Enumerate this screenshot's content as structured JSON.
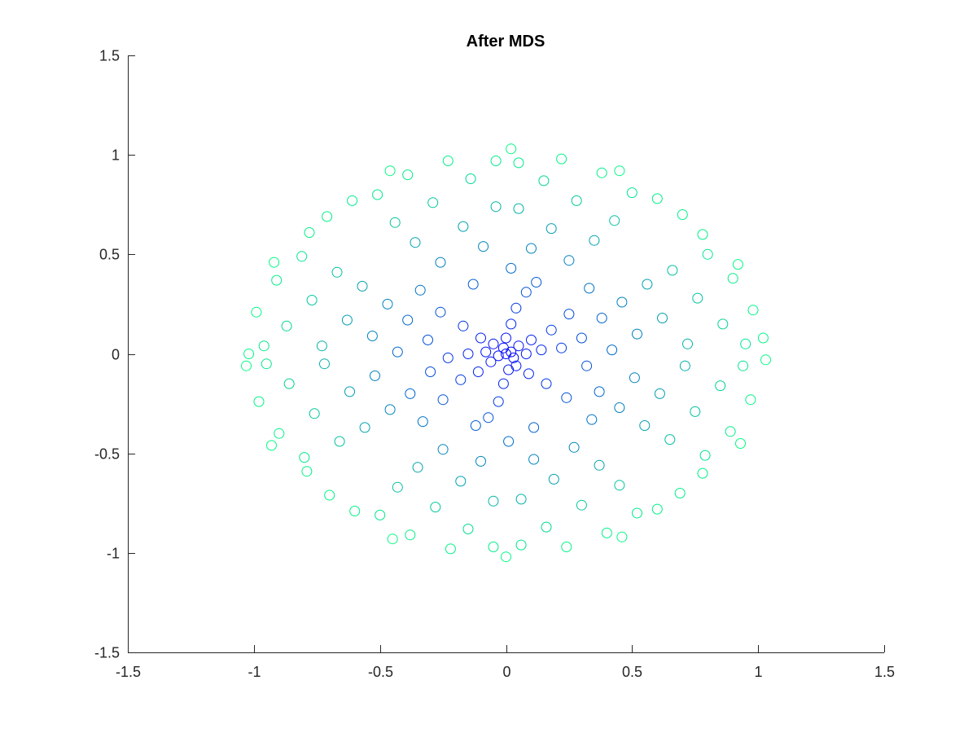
{
  "chart_data": {
    "type": "scatter",
    "title": "After MDS",
    "xlabel": "",
    "ylabel": "",
    "xlim": [
      -1.5,
      1.5
    ],
    "ylim": [
      -1.5,
      1.5
    ],
    "xticks": [
      -1.5,
      -1,
      -0.5,
      0,
      0.5,
      1,
      1.5
    ],
    "yticks": [
      -1.5,
      -1,
      -0.5,
      0,
      0.5,
      1,
      1.5
    ],
    "xtick_labels": [
      "-1.5",
      "-1",
      "-0.5",
      "0",
      "0.5",
      "1",
      "1.5"
    ],
    "ytick_labels": [
      "-1.5",
      "-1",
      "-0.5",
      "0",
      "0.5",
      "1",
      "1.5"
    ],
    "grid": false,
    "legend": "none",
    "marker": "open-circle",
    "color_center": "#0000ff",
    "color_edge": "#00ff80",
    "points": [
      [
        0.0,
        0.0
      ],
      [
        0.02,
        0.01
      ],
      [
        -0.01,
        0.03
      ],
      [
        0.03,
        -0.02
      ],
      [
        -0.03,
        -0.01
      ],
      [
        0.05,
        0.04
      ],
      [
        -0.05,
        0.05
      ],
      [
        0.04,
        -0.06
      ],
      [
        -0.06,
        -0.04
      ],
      [
        0.08,
        0.0
      ],
      [
        -0.08,
        0.01
      ],
      [
        0.0,
        0.08
      ],
      [
        0.01,
        -0.08
      ],
      [
        0.1,
        0.07
      ],
      [
        -0.1,
        0.08
      ],
      [
        0.09,
        -0.1
      ],
      [
        -0.11,
        -0.09
      ],
      [
        0.14,
        0.02
      ],
      [
        -0.15,
        0.0
      ],
      [
        0.02,
        0.15
      ],
      [
        -0.01,
        -0.15
      ],
      [
        0.18,
        0.12
      ],
      [
        -0.17,
        0.14
      ],
      [
        0.16,
        -0.15
      ],
      [
        -0.18,
        -0.13
      ],
      [
        0.22,
        0.03
      ],
      [
        -0.23,
        -0.02
      ],
      [
        0.04,
        0.23
      ],
      [
        -0.03,
        -0.24
      ],
      [
        0.25,
        0.2
      ],
      [
        -0.26,
        0.21
      ],
      [
        0.24,
        -0.22
      ],
      [
        -0.25,
        -0.23
      ],
      [
        0.3,
        0.08
      ],
      [
        -0.31,
        0.07
      ],
      [
        0.08,
        0.31
      ],
      [
        -0.07,
        -0.32
      ],
      [
        0.32,
        -0.06
      ],
      [
        -0.3,
        -0.09
      ],
      [
        0.12,
        0.36
      ],
      [
        -0.13,
        0.35
      ],
      [
        0.11,
        -0.37
      ],
      [
        -0.12,
        -0.36
      ],
      [
        0.38,
        0.18
      ],
      [
        -0.39,
        0.17
      ],
      [
        0.37,
        -0.19
      ],
      [
        -0.38,
        -0.2
      ],
      [
        0.42,
        0.02
      ],
      [
        -0.43,
        0.01
      ],
      [
        0.02,
        0.43
      ],
      [
        0.01,
        -0.44
      ],
      [
        0.33,
        0.33
      ],
      [
        -0.34,
        0.32
      ],
      [
        0.34,
        -0.33
      ],
      [
        -0.33,
        -0.34
      ],
      [
        0.46,
        0.26
      ],
      [
        -0.47,
        0.25
      ],
      [
        0.45,
        -0.27
      ],
      [
        -0.46,
        -0.28
      ],
      [
        0.25,
        0.47
      ],
      [
        -0.26,
        0.46
      ],
      [
        0.27,
        -0.47
      ],
      [
        -0.25,
        -0.48
      ],
      [
        0.52,
        0.1
      ],
      [
        -0.53,
        0.09
      ],
      [
        0.51,
        -0.12
      ],
      [
        -0.52,
        -0.11
      ],
      [
        0.1,
        0.53
      ],
      [
        -0.09,
        0.54
      ],
      [
        0.11,
        -0.53
      ],
      [
        -0.1,
        -0.54
      ],
      [
        0.56,
        0.35
      ],
      [
        -0.57,
        0.34
      ],
      [
        0.55,
        -0.36
      ],
      [
        -0.56,
        -0.37
      ],
      [
        0.35,
        0.57
      ],
      [
        -0.36,
        0.56
      ],
      [
        0.37,
        -0.56
      ],
      [
        -0.35,
        -0.57
      ],
      [
        0.62,
        0.18
      ],
      [
        -0.63,
        0.17
      ],
      [
        0.61,
        -0.2
      ],
      [
        -0.62,
        -0.19
      ],
      [
        0.18,
        0.63
      ],
      [
        -0.17,
        0.64
      ],
      [
        0.19,
        -0.63
      ],
      [
        -0.18,
        -0.64
      ],
      [
        0.66,
        0.42
      ],
      [
        -0.67,
        0.41
      ],
      [
        0.65,
        -0.43
      ],
      [
        -0.66,
        -0.44
      ],
      [
        0.43,
        0.67
      ],
      [
        -0.44,
        0.66
      ],
      [
        0.45,
        -0.66
      ],
      [
        -0.43,
        -0.67
      ],
      [
        0.72,
        0.05
      ],
      [
        -0.73,
        0.04
      ],
      [
        0.71,
        -0.06
      ],
      [
        -0.72,
        -0.05
      ],
      [
        0.05,
        0.73
      ],
      [
        -0.04,
        0.74
      ],
      [
        0.06,
        -0.73
      ],
      [
        -0.05,
        -0.74
      ],
      [
        0.76,
        0.28
      ],
      [
        -0.77,
        0.27
      ],
      [
        0.75,
        -0.29
      ],
      [
        -0.76,
        -0.3
      ],
      [
        0.28,
        0.77
      ],
      [
        -0.29,
        0.76
      ],
      [
        0.3,
        -0.76
      ],
      [
        -0.28,
        -0.77
      ],
      [
        0.8,
        0.5
      ],
      [
        -0.81,
        0.49
      ],
      [
        0.79,
        -0.51
      ],
      [
        -0.8,
        -0.52
      ],
      [
        0.5,
        0.81
      ],
      [
        -0.51,
        0.8
      ],
      [
        0.52,
        -0.8
      ],
      [
        -0.5,
        -0.81
      ],
      [
        0.86,
        0.15
      ],
      [
        -0.87,
        0.14
      ],
      [
        0.85,
        -0.16
      ],
      [
        -0.86,
        -0.15
      ],
      [
        0.15,
        0.87
      ],
      [
        -0.14,
        0.88
      ],
      [
        0.16,
        -0.87
      ],
      [
        -0.15,
        -0.88
      ],
      [
        0.9,
        0.38
      ],
      [
        -0.91,
        0.37
      ],
      [
        0.89,
        -0.39
      ],
      [
        -0.9,
        -0.4
      ],
      [
        0.38,
        0.91
      ],
      [
        -0.39,
        0.9
      ],
      [
        0.4,
        -0.9
      ],
      [
        -0.38,
        -0.91
      ],
      [
        0.95,
        0.05
      ],
      [
        -0.96,
        0.04
      ],
      [
        0.94,
        -0.06
      ],
      [
        -0.95,
        -0.05
      ],
      [
        0.05,
        0.96
      ],
      [
        -0.04,
        0.97
      ],
      [
        0.06,
        -0.96
      ],
      [
        -0.05,
        -0.97
      ],
      [
        0.98,
        0.22
      ],
      [
        -0.99,
        0.21
      ],
      [
        0.97,
        -0.23
      ],
      [
        -0.98,
        -0.24
      ],
      [
        0.22,
        0.98
      ],
      [
        -0.23,
        0.97
      ],
      [
        0.24,
        -0.97
      ],
      [
        -0.22,
        -0.98
      ],
      [
        1.02,
        0.08
      ],
      [
        -1.02,
        0.0
      ],
      [
        1.03,
        -0.03
      ],
      [
        -1.03,
        -0.06
      ],
      [
        0.02,
        1.03
      ],
      [
        0.0,
        -1.02
      ],
      [
        0.7,
        0.7
      ],
      [
        -0.71,
        0.69
      ],
      [
        0.69,
        -0.7
      ],
      [
        -0.7,
        -0.71
      ],
      [
        0.6,
        0.78
      ],
      [
        -0.61,
        0.77
      ],
      [
        0.78,
        0.6
      ],
      [
        -0.78,
        0.61
      ],
      [
        0.78,
        -0.6
      ],
      [
        -0.79,
        -0.59
      ],
      [
        0.6,
        -0.78
      ],
      [
        -0.6,
        -0.79
      ],
      [
        0.92,
        0.45
      ],
      [
        -0.92,
        0.46
      ],
      [
        0.93,
        -0.45
      ],
      [
        -0.93,
        -0.46
      ],
      [
        0.45,
        0.92
      ],
      [
        -0.46,
        0.92
      ],
      [
        0.46,
        -0.92
      ],
      [
        -0.45,
        -0.93
      ]
    ]
  }
}
